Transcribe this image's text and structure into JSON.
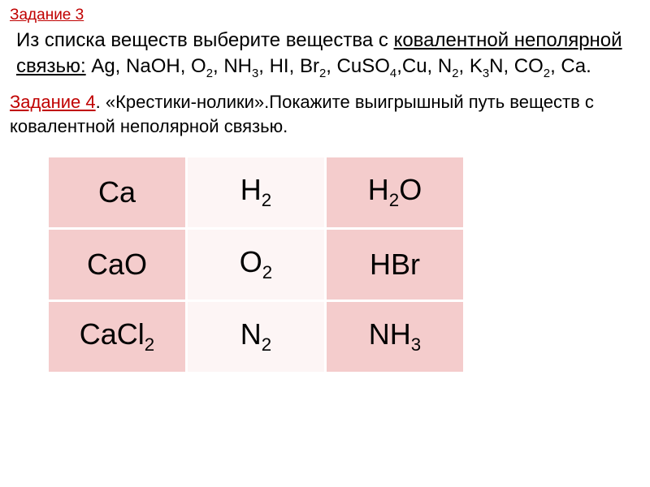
{
  "task3": {
    "header": "Задание 3",
    "line1_pre": "Из списка веществ выберите вещества с ",
    "line1_underlined": "ковалентной неполярной связью:",
    "line1_post": " Ag, NaOH, O",
    "o2_sub": "2",
    "line2a": ", NH",
    "nh3_sub": "3",
    "line2b": ", HI, Br",
    "br2_sub": "2",
    "line2c": ", CuSO",
    "cuso4_sub": "4",
    "line2d": ",Cu, N",
    "n2_sub": "2",
    "line2e": ", K",
    "k3n_sub": "3",
    "line2f": "N, CO",
    "co2_sub": "2",
    "line2g": ", Ca."
  },
  "task4": {
    "label": "Задание 4",
    "text1": ". «Крестики-нолики».Покажите выигрышный путь веществ с ковалентной неполярной связью."
  },
  "table": {
    "r0c0": "Ca",
    "r0c1_a": "H",
    "r0c1_b": "2",
    "r0c2_a": "H",
    "r0c2_b": "2",
    "r0c2_c": "O",
    "r1c0": "CaO",
    "r1c1_a": "O",
    "r1c1_b": "2",
    "r1c2": "HBr",
    "r2c0_a": "CaCl",
    "r2c0_b": "2",
    "r2c1_a": "N",
    "r2c1_b": "2",
    "r2c2_a": "NH",
    "r2c2_b": "3",
    "bg_pink": "#f4cccc",
    "bg_white": "#fdf5f5"
  }
}
